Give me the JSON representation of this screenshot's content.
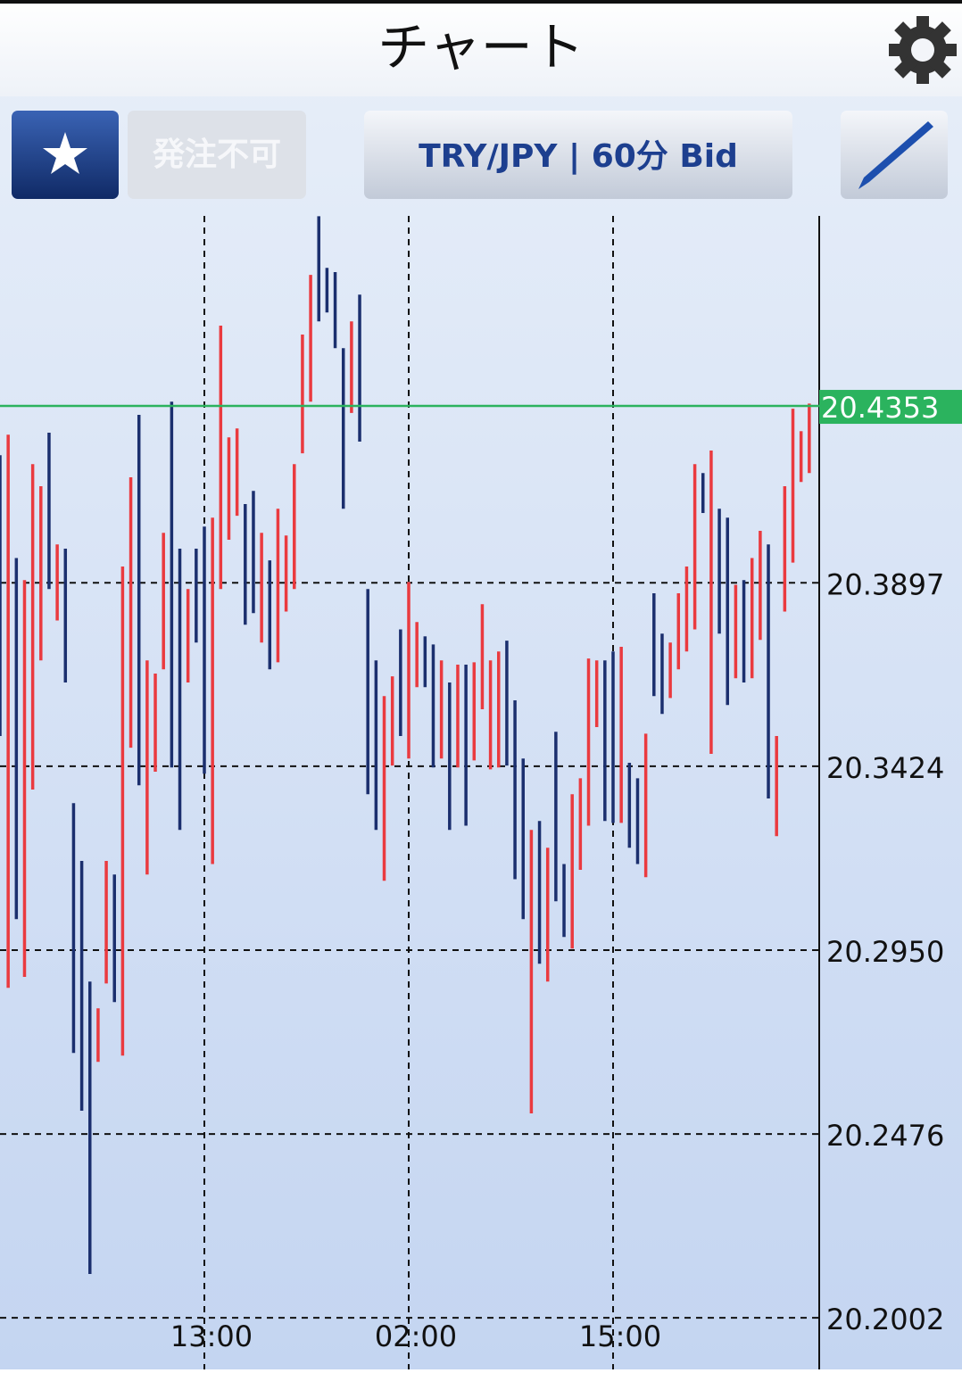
{
  "header": {
    "title": "チャート"
  },
  "toolbar": {
    "order_status": "発注不可",
    "symbol": "TRY/JPY | 60分 Bid"
  },
  "chart_data": {
    "type": "high-low",
    "x": [
      0,
      1,
      2,
      3,
      4,
      5,
      6,
      7,
      8,
      9,
      10,
      11,
      12,
      13,
      14,
      15,
      16,
      17,
      18,
      19,
      20,
      21,
      22,
      23,
      24,
      25,
      26,
      27,
      28,
      29,
      30,
      31,
      32,
      33,
      34,
      35,
      36,
      37,
      38,
      39,
      40,
      41,
      42,
      43,
      44,
      45,
      46,
      47,
      48,
      49,
      50,
      51,
      52,
      53,
      54,
      55,
      56,
      57,
      58,
      59,
      60,
      61,
      62,
      63,
      64,
      65,
      66,
      67,
      68,
      69,
      70,
      71,
      72,
      73,
      74,
      75,
      76,
      77,
      78,
      79,
      80,
      81,
      82,
      83,
      84,
      85,
      86,
      87,
      88,
      89,
      90,
      91,
      92,
      93,
      94,
      95,
      96,
      97,
      98,
      99
    ],
    "high": [
      20.4226,
      20.4279,
      20.3961,
      20.3904,
      20.4203,
      20.4146,
      20.4284,
      20.3996,
      20.3985,
      20.3329,
      20.318,
      20.2869,
      20.28,
      20.318,
      20.3145,
      20.3939,
      20.4169,
      20.433,
      20.3697,
      20.3663,
      20.4026,
      20.4364,
      20.3985,
      20.3881,
      20.3985,
      20.4042,
      20.4065,
      20.456,
      20.4272,
      20.4295,
      20.41,
      20.4134,
      20.4026,
      20.3955,
      20.4088,
      20.4019,
      20.4203,
      20.4537,
      20.4691,
      20.4842,
      20.4709,
      20.4698,
      20.4502,
      20.4571,
      20.464,
      20.3881,
      20.3697,
      20.3605,
      20.3656,
      20.3777,
      20.3899,
      20.3796,
      20.3759,
      20.3738,
      20.3697,
      20.364,
      20.3686,
      20.3686,
      20.3692,
      20.3842,
      20.3697,
      20.372,
      20.3748,
      20.3594,
      20.3444,
      20.326,
      20.3283,
      20.3214,
      20.3513,
      20.3172,
      20.3352,
      20.3393,
      20.3702,
      20.3697,
      20.3697,
      20.372,
      20.3732,
      20.3433,
      20.3393,
      20.3508,
      20.387,
      20.3766,
      20.3743,
      20.387,
      20.3939,
      20.4203,
      20.418,
      20.4238,
      20.4088,
      20.4065,
      20.3892,
      20.3904,
      20.3961,
      20.4031,
      20.3996,
      20.3502,
      20.4146,
      20.4346,
      20.4288,
      20.4359
    ],
    "low": [
      20.3502,
      20.2853,
      20.303,
      20.2881,
      20.3364,
      20.3697,
      20.3881,
      20.38,
      20.364,
      20.2685,
      20.2536,
      20.2115,
      20.2662,
      20.2864,
      20.2816,
      20.2678,
      20.3472,
      20.3375,
      20.3145,
      20.341,
      20.3674,
      20.3421,
      20.326,
      20.364,
      20.3743,
      20.3405,
      20.3172,
      20.3881,
      20.4008,
      20.407,
      20.3789,
      20.3819,
      20.3743,
      20.3674,
      20.3692,
      20.3823,
      20.3881,
      20.4231,
      20.4364,
      20.4571,
      20.4594,
      20.4502,
      20.4088,
      20.4335,
      20.4261,
      20.3352,
      20.326,
      20.3129,
      20.3426,
      20.3502,
      20.3444,
      20.3628,
      20.3628,
      20.3421,
      20.3444,
      20.326,
      20.3421,
      20.3271,
      20.3439,
      20.3571,
      20.3416,
      20.3421,
      20.3426,
      20.3133,
      20.303,
      20.2529,
      20.2915,
      20.2869,
      20.3076,
      20.2984,
      20.2954,
      20.3157,
      20.3271,
      20.3525,
      20.3283,
      20.3278,
      20.3278,
      20.3214,
      20.3172,
      20.3138,
      20.3605,
      20.3559,
      20.36,
      20.3674,
      20.372,
      20.3777,
      20.4077,
      20.3456,
      20.3766,
      20.3582,
      20.3651,
      20.364,
      20.3651,
      20.375,
      20.3341,
      20.3244,
      20.3823,
      20.3949,
      20.4157,
      20.418
    ],
    "rising": [
      false,
      true,
      false,
      true,
      true,
      true,
      false,
      true,
      false,
      false,
      false,
      false,
      true,
      true,
      false,
      true,
      true,
      false,
      true,
      true,
      true,
      false,
      false,
      true,
      false,
      false,
      true,
      true,
      true,
      true,
      false,
      false,
      true,
      false,
      true,
      true,
      true,
      true,
      true,
      false,
      false,
      false,
      false,
      true,
      false,
      false,
      false,
      true,
      true,
      false,
      true,
      true,
      false,
      false,
      true,
      false,
      true,
      false,
      true,
      true,
      true,
      true,
      false,
      false,
      false,
      true,
      false,
      true,
      false,
      false,
      true,
      true,
      true,
      true,
      false,
      false,
      true,
      false,
      false,
      true,
      false,
      false,
      true,
      true,
      true,
      true,
      false,
      true,
      false,
      false,
      true,
      false,
      true,
      true,
      false,
      true,
      true,
      true,
      true,
      true
    ],
    "up_color": "#ea3a3f",
    "down_color": "#1b2f6e",
    "xlim": [
      0,
      100
    ],
    "xticks": [
      {
        "value": 25,
        "label": "13:00"
      },
      {
        "value": 50,
        "label": "02:00"
      },
      {
        "value": 75,
        "label": "15:00"
      }
    ],
    "ylim": [
      20.1869,
      20.4843
    ],
    "yticks": [
      {
        "value": 20.2002,
        "label": "20.2002"
      },
      {
        "value": 20.2476,
        "label": "20.2476"
      },
      {
        "value": 20.295,
        "label": "20.2950"
      },
      {
        "value": 20.3424,
        "label": "20.3424"
      },
      {
        "value": 20.3897,
        "label": "20.3897"
      }
    ],
    "current_price": 20.4353,
    "current_color": "#2bb35e",
    "grid": true
  }
}
